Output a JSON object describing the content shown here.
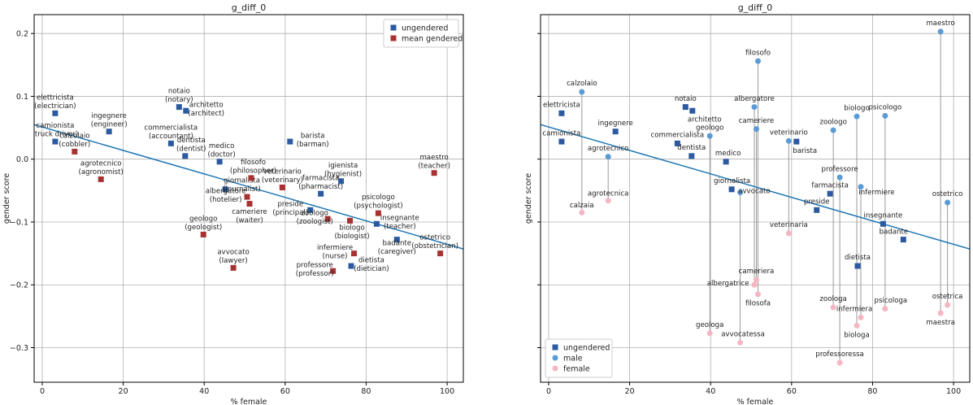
{
  "chart_data": [
    {
      "type": "scatter",
      "title": "g_diff_0",
      "xlabel": "% female",
      "ylabel": "gender score",
      "xlim": [
        -2,
        104
      ],
      "ylim": [
        -0.355,
        0.23
      ],
      "xticks": [
        0,
        20,
        40,
        60,
        80,
        100
      ],
      "yticks": [
        -0.3,
        -0.2,
        -0.1,
        0.0,
        0.1,
        0.2
      ],
      "xtick_labels": [
        "0",
        "20",
        "40",
        "60",
        "80",
        "100"
      ],
      "ytick_labels": [
        "−0.3",
        "−0.2",
        "−0.1",
        "0.0",
        "0.1",
        "0.2"
      ],
      "grid": true,
      "legend_position": "top-right",
      "fit_line": {
        "x": [
          -2,
          104
        ],
        "y": [
          0.055,
          -0.143
        ]
      },
      "colors": {
        "ungendered": "#2c5aa0",
        "gendered": "#a83232",
        "fit": "#1f77b4"
      },
      "series": [
        {
          "name": "ungendered",
          "marker": "square",
          "points": [
            {
              "x": 3.2,
              "y": 0.073,
              "label": "elettricista\n(electrician)",
              "lx": 3.2,
              "ly": 0.092
            },
            {
              "x": 3.2,
              "y": 0.028,
              "label": "camionista\n(truck driver)",
              "lx": 3.2,
              "ly": 0.047
            },
            {
              "x": 16.5,
              "y": 0.044,
              "label": "ingegnere\n(engineer)",
              "lx": 16.5,
              "ly": 0.063
            },
            {
              "x": 33.8,
              "y": 0.083,
              "label": "notaio\n(notary)",
              "lx": 33.8,
              "ly": 0.102
            },
            {
              "x": 35.5,
              "y": 0.077,
              "label": "architetto\n(architect)",
              "lx": 40.5,
              "ly": 0.08
            },
            {
              "x": 31.8,
              "y": 0.025,
              "label": "commercialista\n(accountant)",
              "lx": 31.8,
              "ly": 0.044
            },
            {
              "x": 35.3,
              "y": 0.005,
              "label": "dentista\n(dentist)",
              "lx": 36.8,
              "ly": 0.024
            },
            {
              "x": 43.8,
              "y": -0.004,
              "label": "medico\n(doctor)",
              "lx": 44.3,
              "ly": 0.015
            },
            {
              "x": 61.2,
              "y": 0.028,
              "label": "barista\n(barman)",
              "lx": 66.8,
              "ly": 0.031
            },
            {
              "x": 45.2,
              "y": -0.048,
              "label": "giornalista\n(journalist)",
              "lx": 49.3,
              "ly": -0.04
            },
            {
              "x": 68.8,
              "y": -0.055,
              "label": "farmacista\n(pharmacist)",
              "lx": 68.8,
              "ly": -0.036
            },
            {
              "x": 73.8,
              "y": -0.035,
              "label": "igienista\n(hygienist)",
              "lx": 74.3,
              "ly": -0.016
            },
            {
              "x": 66.2,
              "y": -0.081,
              "label": "preside\n(principal)",
              "lx": 61.3,
              "ly": -0.078
            },
            {
              "x": 82.6,
              "y": -0.103,
              "label": "insegnante\n(teacher)",
              "lx": 88.3,
              "ly": -0.1
            },
            {
              "x": 87.6,
              "y": -0.128,
              "label": "badante\n(caregiver)",
              "lx": 87.6,
              "ly": -0.14
            },
            {
              "x": 76.3,
              "y": -0.17,
              "label": "dietista\n(dietician)",
              "lx": 81.3,
              "ly": -0.167
            }
          ]
        },
        {
          "name": "mean gendered",
          "marker": "square",
          "points": [
            {
              "x": 8.0,
              "y": 0.012,
              "label": "calzolaio\n(cobbler)",
              "lx": 8.0,
              "ly": 0.031
            },
            {
              "x": 14.5,
              "y": -0.032,
              "label": "agrotecnico\n(agronomist)",
              "lx": 14.5,
              "ly": -0.013
            },
            {
              "x": 51.6,
              "y": -0.03,
              "label": "filosofo\n(philosopher)",
              "lx": 52.1,
              "ly": -0.011
            },
            {
              "x": 50.6,
              "y": -0.06,
              "label": "albergatore\n(hotelier)",
              "lx": 45.3,
              "ly": -0.057
            },
            {
              "x": 51.2,
              "y": -0.071,
              "label": "cameriere\n(waiter)",
              "lx": 51.2,
              "ly": -0.09
            },
            {
              "x": 59.3,
              "y": -0.045,
              "label": "veterinario\n(veterinary)",
              "lx": 59.3,
              "ly": -0.026
            },
            {
              "x": 39.8,
              "y": -0.12,
              "label": "geologo\n(geologist)",
              "lx": 39.8,
              "ly": -0.101
            },
            {
              "x": 47.2,
              "y": -0.173,
              "label": "avvocato\n(lawyer)",
              "lx": 47.2,
              "ly": -0.154
            },
            {
              "x": 70.5,
              "y": -0.095,
              "label": "zoologo\n(zoologist)",
              "lx": 67.3,
              "ly": -0.092
            },
            {
              "x": 76.0,
              "y": -0.098,
              "label": "biologo\n(biologist)",
              "lx": 76.5,
              "ly": -0.115
            },
            {
              "x": 77.0,
              "y": -0.15,
              "label": "infermiere\n(nurse)",
              "lx": 72.3,
              "ly": -0.147
            },
            {
              "x": 71.8,
              "y": -0.178,
              "label": "professore\n(professor)",
              "lx": 67.3,
              "ly": -0.175
            },
            {
              "x": 83.0,
              "y": -0.086,
              "label": "psicologo\n(psychologist)",
              "lx": 83.0,
              "ly": -0.067
            },
            {
              "x": 96.8,
              "y": -0.022,
              "label": "maestro\n(teacher)",
              "lx": 96.8,
              "ly": -0.003
            },
            {
              "x": 98.3,
              "y": -0.15,
              "label": "ostetrico\n(obstetrician)",
              "lx": 97.0,
              "ly": -0.131
            }
          ]
        }
      ]
    },
    {
      "type": "scatter",
      "title": "g_diff_0",
      "xlabel": "% female",
      "ylabel": "gender score",
      "xlim": [
        -2,
        104
      ],
      "ylim": [
        -0.355,
        0.23
      ],
      "xticks": [
        0,
        20,
        40,
        60,
        80,
        100
      ],
      "yticks": [
        -0.3,
        -0.2,
        -0.1,
        0.0,
        0.1,
        0.2
      ],
      "xtick_labels": [
        "0",
        "20",
        "40",
        "60",
        "80",
        "100"
      ],
      "ytick_labels": [],
      "grid": true,
      "legend_position": "bottom-left",
      "fit_line": {
        "x": [
          -2,
          104
        ],
        "y": [
          0.055,
          -0.143
        ]
      },
      "colors": {
        "ungendered": "#2c5aa0",
        "male": "#5b9bd5",
        "female": "#f4b6c2",
        "fit": "#1f77b4"
      },
      "series": [
        {
          "name": "ungendered",
          "marker": "square",
          "points": [
            {
              "x": 3.2,
              "y": 0.073,
              "label": "elettricista",
              "lx": 3.2,
              "ly": 0.087
            },
            {
              "x": 3.2,
              "y": 0.028,
              "label": "camionista",
              "lx": 3.2,
              "ly": 0.042
            },
            {
              "x": 16.5,
              "y": 0.044,
              "label": "ingegnere",
              "lx": 16.5,
              "ly": 0.058
            },
            {
              "x": 33.8,
              "y": 0.083,
              "label": "notaio",
              "lx": 33.8,
              "ly": 0.097
            },
            {
              "x": 35.5,
              "y": 0.077,
              "label": "architetto",
              "lx": 38.5,
              "ly": 0.064
            },
            {
              "x": 31.8,
              "y": 0.025,
              "label": "commercialista",
              "lx": 31.8,
              "ly": 0.039
            },
            {
              "x": 35.3,
              "y": 0.005,
              "label": "dentista",
              "lx": 35.3,
              "ly": 0.019
            },
            {
              "x": 43.8,
              "y": -0.004,
              "label": "medico",
              "lx": 44.3,
              "ly": 0.01
            },
            {
              "x": 61.2,
              "y": 0.028,
              "label": "barista",
              "lx": 63.3,
              "ly": 0.014
            },
            {
              "x": 45.2,
              "y": -0.048,
              "label": "giornalista",
              "lx": 45.3,
              "ly": -0.034
            },
            {
              "x": 69.5,
              "y": -0.055,
              "label": "farmacista",
              "lx": 69.5,
              "ly": -0.041
            },
            {
              "x": 66.2,
              "y": -0.081,
              "label": "preside",
              "lx": 66.2,
              "ly": -0.067
            },
            {
              "x": 82.6,
              "y": -0.103,
              "label": "insegnante",
              "lx": 82.6,
              "ly": -0.089
            },
            {
              "x": 87.6,
              "y": -0.128,
              "label": "badante",
              "lx": 85.2,
              "ly": -0.115
            },
            {
              "x": 76.3,
              "y": -0.17,
              "label": "dietista",
              "lx": 76.3,
              "ly": -0.156
            }
          ]
        },
        {
          "name": "male",
          "marker": "circle",
          "points": [
            {
              "x": 8.2,
              "y": 0.107,
              "label": "calzolaio",
              "lx": 8.2,
              "ly": 0.121
            },
            {
              "x": 14.7,
              "y": 0.004,
              "label": "agrotecnico",
              "lx": 14.7,
              "ly": 0.018
            },
            {
              "x": 51.7,
              "y": 0.156,
              "label": "filosofo",
              "lx": 51.7,
              "ly": 0.17
            },
            {
              "x": 50.8,
              "y": 0.083,
              "label": "albergatore",
              "lx": 50.8,
              "ly": 0.097
            },
            {
              "x": 51.3,
              "y": 0.048,
              "label": "cameriere",
              "lx": 51.3,
              "ly": 0.062
            },
            {
              "x": 39.8,
              "y": 0.037,
              "label": "geologo",
              "lx": 39.8,
              "ly": 0.051
            },
            {
              "x": 59.3,
              "y": 0.029,
              "label": "veterinario",
              "lx": 59.3,
              "ly": 0.043
            },
            {
              "x": 70.3,
              "y": 0.046,
              "label": "zoologo",
              "lx": 70.3,
              "ly": 0.06
            },
            {
              "x": 76.1,
              "y": 0.068,
              "label": "biologo",
              "lx": 76.1,
              "ly": 0.082
            },
            {
              "x": 83.1,
              "y": 0.069,
              "label": "psicologo",
              "lx": 83.1,
              "ly": 0.083
            },
            {
              "x": 96.8,
              "y": 0.203,
              "label": "maestro",
              "lx": 96.8,
              "ly": 0.217
            },
            {
              "x": 71.9,
              "y": -0.029,
              "label": "professore",
              "lx": 71.9,
              "ly": -0.015
            },
            {
              "x": 77.1,
              "y": -0.044,
              "label": "infermiere",
              "lx": 81.0,
              "ly": -0.052
            },
            {
              "x": 98.5,
              "y": -0.069,
              "label": "ostetrico",
              "lx": 98.5,
              "ly": -0.055
            },
            {
              "x": 47.3,
              "y": -0.053,
              "label": "avvocato",
              "lx": 50.8,
              "ly": -0.05
            }
          ]
        },
        {
          "name": "female",
          "marker": "circle",
          "points": [
            {
              "x": 8.2,
              "y": -0.085,
              "label": "calzaia",
              "lx": 8.2,
              "ly": -0.073
            },
            {
              "x": 14.7,
              "y": -0.066,
              "label": "agrotecnica",
              "lx": 14.7,
              "ly": -0.054
            },
            {
              "x": 51.7,
              "y": -0.215,
              "label": "filosofa",
              "lx": 51.7,
              "ly": -0.229
            },
            {
              "x": 50.8,
              "y": -0.2,
              "label": "albergatrice",
              "lx": 44.3,
              "ly": -0.197
            },
            {
              "x": 51.3,
              "y": -0.192,
              "label": "cameriera",
              "lx": 51.3,
              "ly": -0.178
            },
            {
              "x": 39.8,
              "y": -0.277,
              "label": "geologa",
              "lx": 39.8,
              "ly": -0.263
            },
            {
              "x": 59.3,
              "y": -0.118,
              "label": "veterinaria",
              "lx": 59.3,
              "ly": -0.104
            },
            {
              "x": 70.3,
              "y": -0.236,
              "label": "zoologa",
              "lx": 70.3,
              "ly": -0.222
            },
            {
              "x": 76.1,
              "y": -0.265,
              "label": "biologa",
              "lx": 76.1,
              "ly": -0.279
            },
            {
              "x": 83.1,
              "y": -0.238,
              "label": "psicologa",
              "lx": 84.5,
              "ly": -0.224
            },
            {
              "x": 96.8,
              "y": -0.245,
              "label": "maestra",
              "lx": 96.8,
              "ly": -0.259
            },
            {
              "x": 71.9,
              "y": -0.324,
              "label": "professoressa",
              "lx": 71.9,
              "ly": -0.31
            },
            {
              "x": 77.1,
              "y": -0.252,
              "label": "infermiera",
              "lx": 75.5,
              "ly": -0.238
            },
            {
              "x": 98.5,
              "y": -0.232,
              "label": "ostetrica",
              "lx": 98.5,
              "ly": -0.218
            },
            {
              "x": 47.3,
              "y": -0.292,
              "label": "avvocatessa",
              "lx": 48.0,
              "ly": -0.278
            }
          ]
        }
      ]
    }
  ]
}
